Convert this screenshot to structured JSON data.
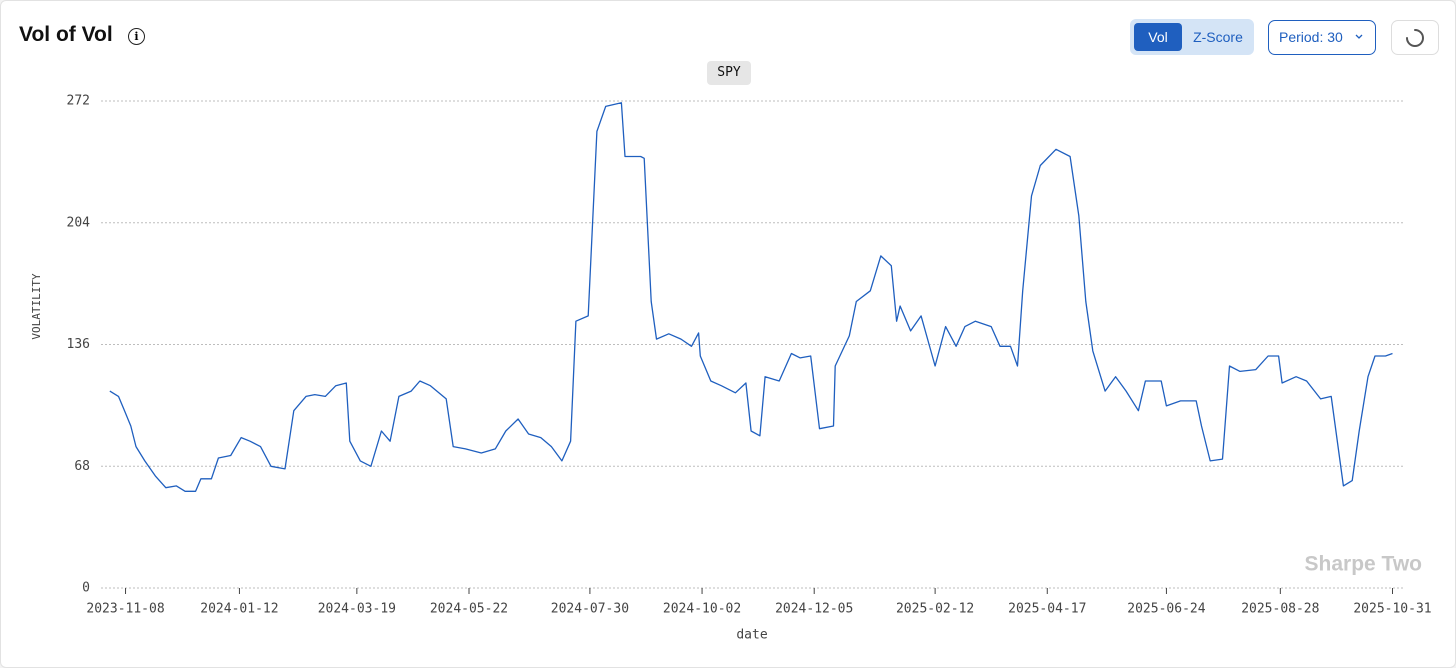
{
  "header": {
    "title": "Vol of Vol",
    "toggle": [
      "Vol",
      "Z-Score"
    ],
    "period": "Period: 30",
    "watermark": "Sharpe Two"
  },
  "chart_data": {
    "type": "line",
    "xlabel": "date",
    "ylabel": "VOLATILITY",
    "x": [
      "2023-10-30",
      "2023-11-04",
      "2023-11-07",
      "2023-11-11",
      "2023-11-14",
      "2023-11-19",
      "2023-11-25",
      "2023-12-01",
      "2023-12-07",
      "2023-12-12",
      "2023-12-18",
      "2023-12-21",
      "2023-12-27",
      "2023-12-31",
      "2024-01-07",
      "2024-01-13",
      "2024-01-18",
      "2024-01-24",
      "2024-01-30",
      "2024-02-07",
      "2024-02-12",
      "2024-02-19",
      "2024-02-24",
      "2024-03-01",
      "2024-03-07",
      "2024-03-13",
      "2024-03-15",
      "2024-03-21",
      "2024-03-27",
      "2024-04-02",
      "2024-04-07",
      "2024-04-12",
      "2024-04-19",
      "2024-04-24",
      "2024-04-30",
      "2024-05-09",
      "2024-05-13",
      "2024-05-20",
      "2024-05-29",
      "2024-06-06",
      "2024-06-12",
      "2024-06-19",
      "2024-06-25",
      "2024-07-02",
      "2024-07-08",
      "2024-07-14",
      "2024-07-19",
      "2024-07-22",
      "2024-07-29",
      "2024-08-03",
      "2024-08-08",
      "2024-08-17",
      "2024-08-19",
      "2024-08-28",
      "2024-08-30",
      "2024-09-03",
      "2024-09-06",
      "2024-09-13",
      "2024-09-20",
      "2024-09-26",
      "2024-09-30",
      "2024-10-01",
      "2024-10-07",
      "2024-10-13",
      "2024-10-21",
      "2024-10-27",
      "2024-10-30",
      "2024-11-04",
      "2024-11-07",
      "2024-11-15",
      "2024-11-22",
      "2024-11-27",
      "2024-12-03",
      "2024-12-08",
      "2024-12-16",
      "2024-12-17",
      "2024-12-25",
      "2024-12-29",
      "2025-01-06",
      "2025-01-12",
      "2025-01-18",
      "2025-01-21",
      "2025-01-23",
      "2025-01-29",
      "2025-02-04",
      "2025-02-12",
      "2025-02-18",
      "2025-02-24",
      "2025-03-01",
      "2025-03-07",
      "2025-03-16",
      "2025-03-21",
      "2025-03-27",
      "2025-03-31",
      "2025-04-03",
      "2025-04-08",
      "2025-04-13",
      "2025-04-22",
      "2025-04-30",
      "2025-05-05",
      "2025-05-09",
      "2025-05-13",
      "2025-05-20",
      "2025-05-26",
      "2025-06-01",
      "2025-06-08",
      "2025-06-12",
      "2025-06-21",
      "2025-06-24",
      "2025-07-02",
      "2025-07-11",
      "2025-07-14",
      "2025-07-19",
      "2025-07-26",
      "2025-07-30",
      "2025-08-05",
      "2025-08-14",
      "2025-08-21",
      "2025-08-27",
      "2025-08-29",
      "2025-09-06",
      "2025-09-12",
      "2025-09-20",
      "2025-09-26",
      "2025-10-03",
      "2025-10-08",
      "2025-10-12",
      "2025-10-17",
      "2025-10-21",
      "2025-10-27",
      "2025-10-31"
    ],
    "series": [
      {
        "name": "SPY",
        "color": "#1f5fbf",
        "values": [
          110,
          107,
          100,
          90.5,
          79,
          71,
          62.6,
          56,
          57,
          54,
          54,
          61,
          61,
          72.6,
          74,
          84,
          82,
          79,
          68,
          66.5,
          99,
          107,
          108,
          107,
          113,
          114.5,
          82,
          71,
          68,
          87.7,
          82,
          107,
          110,
          115.6,
          113,
          105.6,
          79,
          77.7,
          75.4,
          77.7,
          87.7,
          94.4,
          86,
          84,
          79,
          71,
          82,
          149,
          152,
          255,
          269,
          271,
          241,
          241,
          240,
          160,
          139,
          142,
          139,
          135,
          142.5,
          129.6,
          115.6,
          113,
          109,
          114.5,
          87.7,
          85,
          118,
          115.6,
          131,
          128.5,
          129.6,
          89,
          90.5,
          124,
          140.8,
          160,
          166,
          185.5,
          180,
          149,
          157.5,
          143.6,
          152,
          124,
          146,
          135,
          146,
          149,
          146,
          135,
          135,
          124,
          166,
          219,
          236,
          245,
          241,
          208,
          160,
          132.4,
          110,
          118,
          110,
          99,
          115.6,
          115.6,
          101.7,
          104.5,
          104.5,
          90.5,
          71,
          72,
          124,
          121,
          122,
          129.6,
          129.6,
          114.5,
          118,
          115.6,
          105.6,
          107,
          57,
          60,
          87.7,
          118,
          129.6,
          129.6,
          131
        ]
      }
    ],
    "xlim": [
      "2023-10-25",
      "2025-11-06"
    ],
    "xticks": [
      "2023-11-08",
      "2024-01-12",
      "2024-03-19",
      "2024-05-22",
      "2024-07-30",
      "2024-10-02",
      "2024-12-05",
      "2025-02-12",
      "2025-04-17",
      "2025-06-24",
      "2025-08-28",
      "2025-10-31"
    ],
    "ylim": [
      0,
      272
    ],
    "yticks": [
      0,
      68,
      136,
      204,
      272
    ],
    "grid": true
  }
}
